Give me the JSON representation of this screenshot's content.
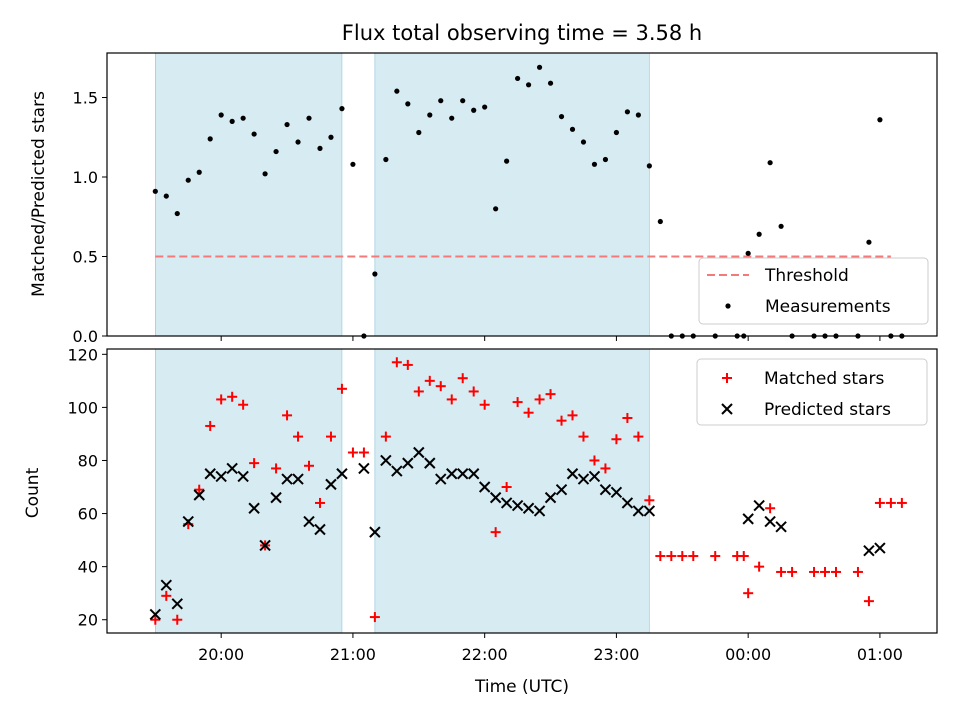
{
  "chart_data": [
    {
      "type": "scatter",
      "title": "Flux total observing time = 3.58 h",
      "xlabel": "",
      "ylabel": "Matched/Predicted stars",
      "ylim": [
        0,
        1.78
      ],
      "yticks": [
        "0.0",
        "0.5",
        "1.0",
        "1.5"
      ],
      "ytick_values": [
        0,
        0.5,
        1.0,
        1.5
      ],
      "threshold": 0.5,
      "legend_position": "lower-right",
      "legend": [
        "Threshold",
        "Measurements"
      ],
      "shaded_intervals": [
        [
          "19:30",
          "20:55"
        ],
        [
          "21:10",
          "23:15"
        ]
      ],
      "series": [
        {
          "name": "Measurements",
          "x": [
            "19:30",
            "19:35",
            "19:40",
            "19:45",
            "19:50",
            "19:55",
            "20:00",
            "20:05",
            "20:10",
            "20:15",
            "20:20",
            "20:25",
            "20:30",
            "20:35",
            "20:40",
            "20:45",
            "20:50",
            "20:55",
            "21:00",
            "21:05",
            "21:10",
            "21:15",
            "21:20",
            "21:25",
            "21:30",
            "21:35",
            "21:40",
            "21:45",
            "21:50",
            "21:55",
            "22:00",
            "22:05",
            "22:10",
            "22:15",
            "22:20",
            "22:25",
            "22:30",
            "22:35",
            "22:40",
            "22:45",
            "22:50",
            "22:55",
            "23:00",
            "23:05",
            "23:10",
            "23:15",
            "23:20",
            "23:25",
            "23:30",
            "23:35",
            "23:45",
            "23:55",
            "23:58",
            "24:00",
            "24:05",
            "24:10",
            "24:15",
            "24:20",
            "24:30",
            "24:35",
            "24:40",
            "24:50",
            "24:55",
            "25:00",
            "25:05",
            "25:10"
          ],
          "y": [
            0.91,
            0.88,
            0.77,
            0.98,
            1.03,
            1.24,
            1.39,
            1.35,
            1.37,
            1.27,
            1.02,
            1.16,
            1.33,
            1.22,
            1.37,
            1.18,
            1.25,
            1.43,
            1.08,
            0.0,
            0.39,
            1.11,
            1.54,
            1.46,
            1.28,
            1.39,
            1.48,
            1.37,
            1.48,
            1.42,
            1.44,
            0.8,
            1.1,
            1.62,
            1.58,
            1.69,
            1.59,
            1.38,
            1.3,
            1.22,
            1.08,
            1.11,
            1.28,
            1.41,
            1.39,
            1.07,
            0.72,
            0.0,
            0.0,
            0.0,
            0.0,
            0.0,
            0.0,
            0.52,
            0.64,
            1.09,
            0.69,
            0.0,
            0.0,
            0.0,
            0.0,
            0.0,
            0.59,
            1.36,
            0.0,
            0.0
          ]
        },
        {
          "name": "Threshold",
          "x": [
            "19:30",
            "25:05"
          ],
          "y": [
            0.5,
            0.5
          ]
        }
      ]
    },
    {
      "type": "scatter",
      "title": "",
      "xlabel": "Time (UTC)",
      "ylabel": "Count",
      "ylim": [
        15,
        122
      ],
      "yticks": [
        "20",
        "40",
        "60",
        "80",
        "100",
        "120"
      ],
      "ytick_values": [
        20,
        40,
        60,
        80,
        100,
        120
      ],
      "xticks": [
        "20:00",
        "21:00",
        "22:00",
        "23:00",
        "00:00",
        "01:00"
      ],
      "legend_position": "upper-right",
      "legend": [
        "Matched stars",
        "Predicted stars"
      ],
      "shaded_intervals": [
        [
          "19:30",
          "20:55"
        ],
        [
          "21:10",
          "23:15"
        ]
      ],
      "series": [
        {
          "name": "Matched stars",
          "x": [
            "19:30",
            "19:35",
            "19:40",
            "19:45",
            "19:50",
            "19:55",
            "20:00",
            "20:05",
            "20:10",
            "20:15",
            "20:20",
            "20:25",
            "20:30",
            "20:35",
            "20:40",
            "20:45",
            "20:50",
            "20:55",
            "21:00",
            "21:05",
            "21:10",
            "21:15",
            "21:20",
            "21:25",
            "21:30",
            "21:35",
            "21:40",
            "21:45",
            "21:50",
            "21:55",
            "22:00",
            "22:05",
            "22:10",
            "22:15",
            "22:20",
            "22:25",
            "22:30",
            "22:35",
            "22:40",
            "22:45",
            "22:50",
            "22:55",
            "23:00",
            "23:05",
            "23:10",
            "23:15",
            "23:20",
            "23:25",
            "23:30",
            "23:35",
            "23:45",
            "23:55",
            "23:58",
            "24:00",
            "24:05",
            "24:10",
            "24:15",
            "24:20",
            "24:30",
            "24:35",
            "24:40",
            "24:50",
            "24:55",
            "25:00",
            "25:05",
            "25:10"
          ],
          "y": [
            20,
            29,
            20,
            56,
            69,
            93,
            103,
            104,
            101,
            79,
            48,
            77,
            97,
            89,
            78,
            64,
            89,
            107,
            83,
            83,
            21,
            89,
            117,
            116,
            106,
            110,
            108,
            103,
            111,
            106,
            101,
            53,
            70,
            102,
            98,
            103,
            105,
            95,
            97,
            89,
            80,
            77,
            88,
            96,
            89,
            65,
            44,
            44,
            44,
            44,
            44,
            44,
            44,
            30,
            40,
            62,
            38,
            38,
            38,
            38,
            38,
            38,
            27,
            64,
            64,
            64
          ]
        },
        {
          "name": "Predicted stars",
          "x": [
            "19:30",
            "19:35",
            "19:40",
            "19:45",
            "19:50",
            "19:55",
            "20:00",
            "20:05",
            "20:10",
            "20:15",
            "20:20",
            "20:25",
            "20:30",
            "20:35",
            "20:40",
            "20:45",
            "20:50",
            "20:55",
            "21:05",
            "21:10",
            "21:15",
            "21:20",
            "21:25",
            "21:30",
            "21:35",
            "21:40",
            "21:45",
            "21:50",
            "21:55",
            "22:00",
            "22:05",
            "22:10",
            "22:15",
            "22:20",
            "22:25",
            "22:30",
            "22:35",
            "22:40",
            "22:45",
            "22:50",
            "22:55",
            "23:00",
            "23:05",
            "23:10",
            "23:15",
            "24:00",
            "24:05",
            "24:10",
            "24:15",
            "24:55",
            "25:00"
          ],
          "y": [
            22,
            33,
            26,
            57,
            67,
            75,
            74,
            77,
            74,
            62,
            48,
            66,
            73,
            73,
            57,
            54,
            71,
            75,
            77,
            53,
            80,
            76,
            79,
            83,
            79,
            73,
            75,
            75,
            75,
            70,
            66,
            64,
            63,
            62,
            61,
            66,
            69,
            75,
            73,
            74,
            69,
            68,
            64,
            61,
            61,
            58,
            63,
            57,
            55,
            46,
            47
          ]
        }
      ]
    }
  ]
}
